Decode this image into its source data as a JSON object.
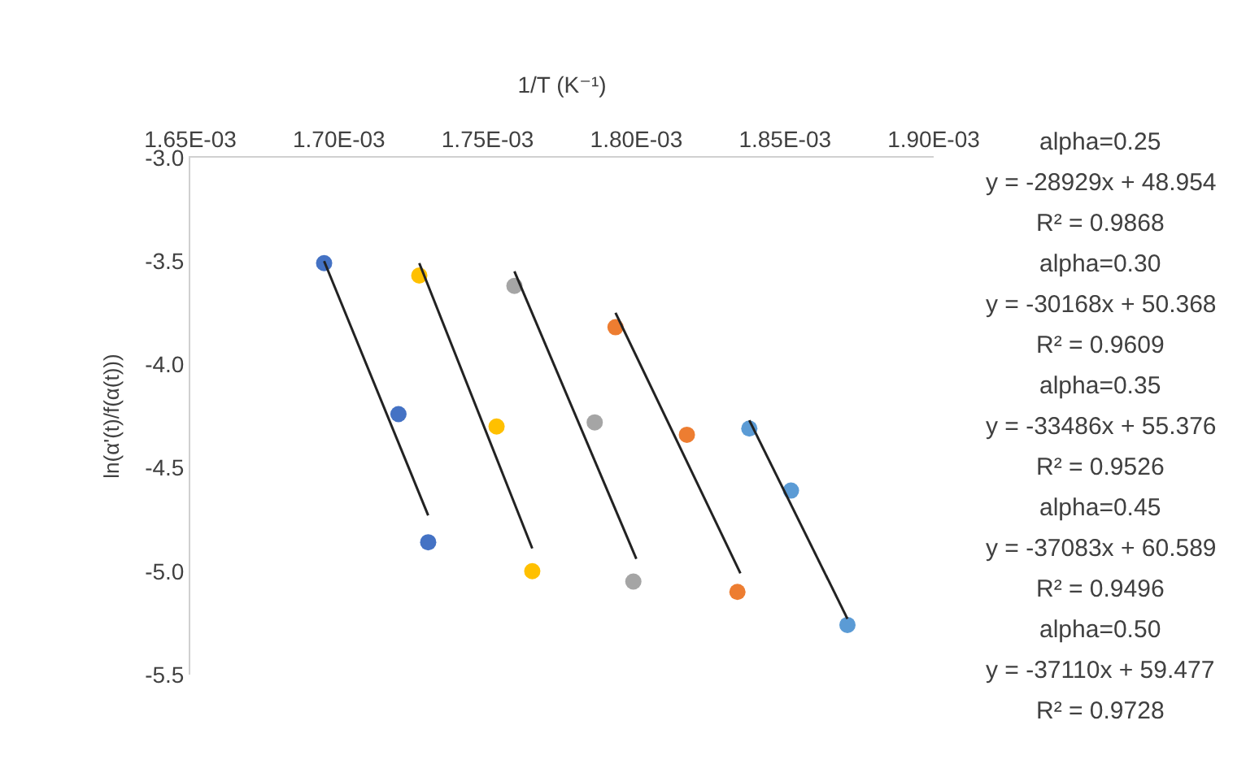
{
  "chart_data": {
    "type": "scatter",
    "xlabel": "1/T (K⁻¹)",
    "ylabel": "ln(α'(t)/f(α(t)))",
    "xlim": [
      0.00165,
      0.0019
    ],
    "xticks": [
      {
        "value": 0.00165,
        "label": "1.65E-03"
      },
      {
        "value": 0.0017,
        "label": "1.70E-03"
      },
      {
        "value": 0.00175,
        "label": "1.75E-03"
      },
      {
        "value": 0.0018,
        "label": "1.80E-03"
      },
      {
        "value": 0.00185,
        "label": "1.85E-03"
      },
      {
        "value": 0.0019,
        "label": "1.90E-03"
      }
    ],
    "ylim": [
      -5.5,
      -3.0
    ],
    "yticks": [
      {
        "value": -3,
        "label": "-3.0"
      },
      -3.5,
      {
        "value": -4,
        "label": "-4.0"
      },
      -4.5,
      {
        "value": -5,
        "label": "-5.0"
      },
      -5.5
    ],
    "grid": false,
    "series": [
      {
        "marker": "circle",
        "color": "#4472c4",
        "x": [
          0.001695,
          0.00172,
          0.00173
        ],
        "values": [
          -3.51,
          -4.24,
          -4.86
        ]
      },
      {
        "marker": "circle",
        "color": "#ffc000",
        "x": [
          0.001727,
          0.001753,
          0.001765
        ],
        "values": [
          -3.57,
          -4.3,
          -5.0
        ]
      },
      {
        "marker": "circle",
        "color": "#a5a5a5",
        "x": [
          0.001759,
          0.001786,
          0.001799
        ],
        "values": [
          -3.62,
          -4.28,
          -5.05
        ]
      },
      {
        "marker": "circle",
        "color": "#ed7d31",
        "x": [
          0.001793,
          0.001817,
          0.001834
        ],
        "values": [
          -3.82,
          -4.34,
          -5.1
        ]
      },
      {
        "marker": "circle",
        "color": "#5b9bd5",
        "x": [
          0.001838,
          0.001852,
          0.001871
        ],
        "values": [
          -4.31,
          -4.61,
          -5.26
        ]
      },
      {
        "type": "line",
        "marker": "none",
        "color": "#222222",
        "x": [
          0.001695,
          0.00173
        ],
        "values": [
          -3.5,
          -4.73
        ]
      },
      {
        "type": "line",
        "marker": "none",
        "color": "#222222",
        "x": [
          0.001727,
          0.001765
        ],
        "values": [
          -3.51,
          -4.89
        ]
      },
      {
        "type": "line",
        "marker": "none",
        "color": "#222222",
        "x": [
          0.001759,
          0.0018
        ],
        "values": [
          -3.55,
          -4.94
        ]
      },
      {
        "type": "line",
        "marker": "none",
        "color": "#222222",
        "x": [
          0.001793,
          0.001835
        ],
        "values": [
          -3.75,
          -5.01
        ]
      },
      {
        "type": "line",
        "marker": "none",
        "color": "#222222",
        "x": [
          0.001838,
          0.001871
        ],
        "values": [
          -4.27,
          -5.23
        ]
      }
    ],
    "annotations": [
      "alpha=0.25",
      "y = -28929x + 48.954",
      "R² = 0.9868",
      "alpha=0.30",
      "y = -30168x + 50.368",
      "R² = 0.9609",
      "alpha=0.35",
      "y = -33486x + 55.376",
      "R² = 0.9526",
      "alpha=0.45",
      "y = -37083x + 60.589",
      "R² = 0.9496",
      "alpha=0.50",
      "y = -37110x + 59.477",
      "R² = 0.9728"
    ]
  }
}
